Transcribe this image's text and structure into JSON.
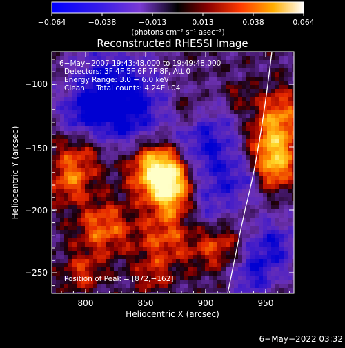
{
  "colorbar": {
    "ticks": [
      "−0.064",
      "−0.038",
      "−0.013",
      "0.013",
      "0.038",
      "0.064"
    ],
    "unit_label": "(photons cm⁻² s⁻¹ asec⁻²)"
  },
  "title": "Reconstructed RHESSI Image",
  "info": {
    "time_line": "6−May−2007 19:43:48.000 to 19:49:48.000",
    "detectors_line": "Detectors: 3F 4F 5F 6F 7F 8F, Att 0",
    "energy_line": "Energy Range: 3.0 − 6.0 keV",
    "clean_line": "Clean     Total counts: 4.24E+04",
    "peak_line": "Position of Peak = [872,−162]"
  },
  "axes": {
    "xlabel": "Heliocentric X (arcsec)",
    "ylabel": "Heliocentric Y (arcsec)",
    "xticks": [
      "800",
      "850",
      "900",
      "950"
    ],
    "yticks": [
      "−100",
      "−150",
      "−200",
      "−250"
    ],
    "xlim": [
      772,
      965
    ],
    "ylim": [
      -275,
      -80
    ]
  },
  "footer_timestamp": "6−May−2022 03:32",
  "colors": {
    "background": "#000000",
    "text": "#ffffff",
    "limb_line": "#ffffff"
  }
}
